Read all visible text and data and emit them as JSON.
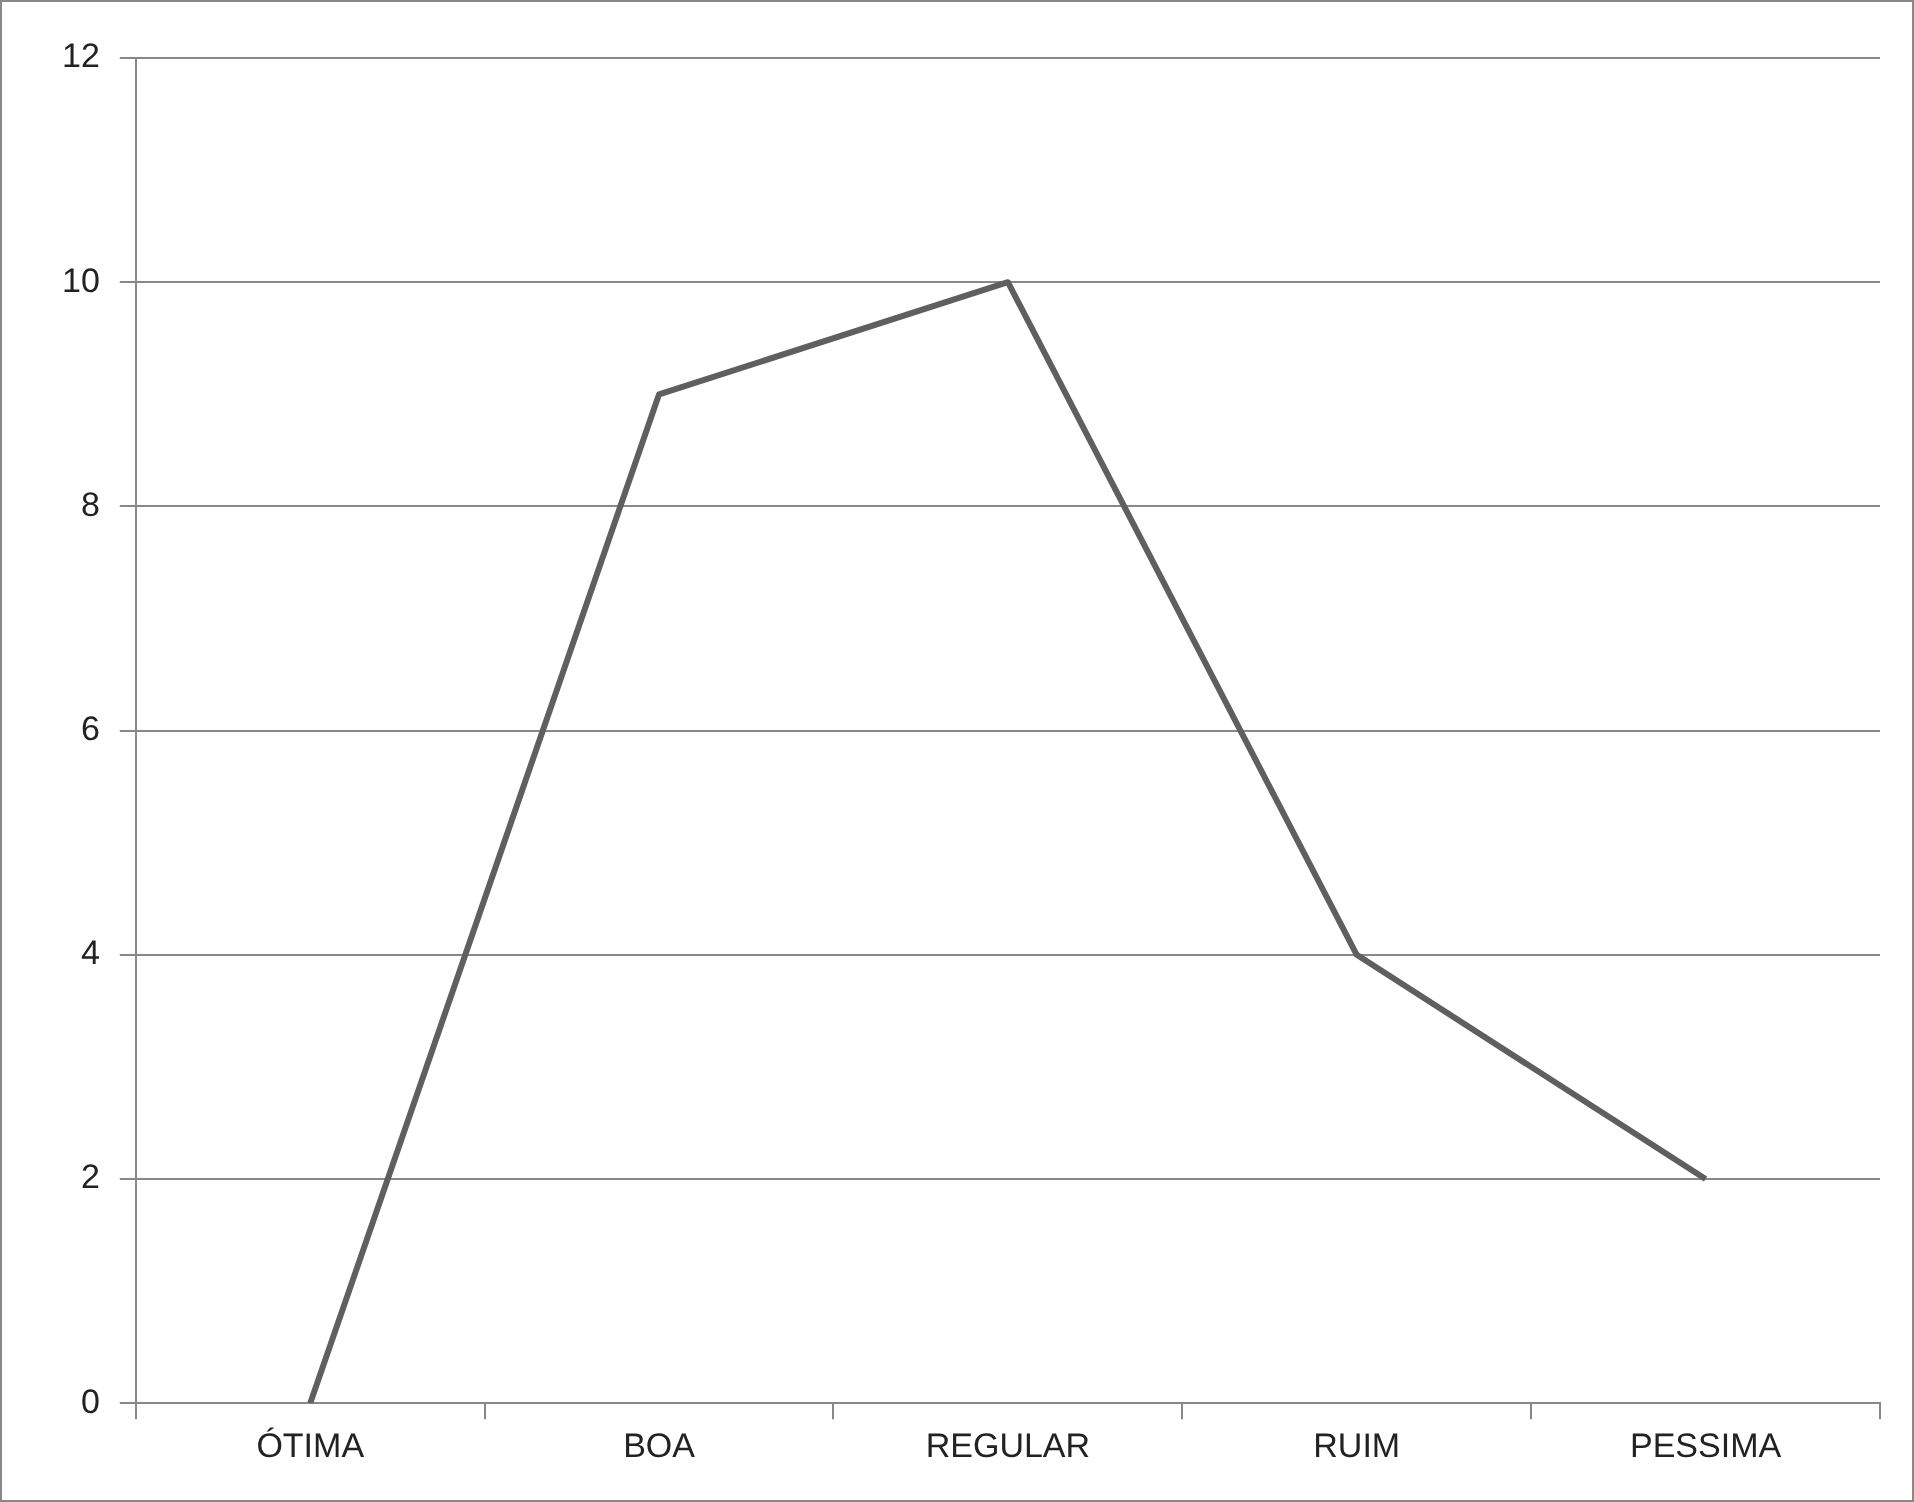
{
  "chart_data": {
    "type": "line",
    "categories": [
      "ÓTIMA",
      "BOA",
      "REGULAR",
      "RUIM",
      "PESSIMA"
    ],
    "series": [
      {
        "color": "#5f5f5f",
        "values": [
          0,
          9,
          10,
          4,
          2
        ]
      }
    ],
    "ylim": [
      0,
      12
    ],
    "yticks": [
      0,
      2,
      4,
      6,
      8,
      10,
      12
    ],
    "grid": "y",
    "legend": false,
    "marker": "none",
    "line_style": "solid"
  }
}
